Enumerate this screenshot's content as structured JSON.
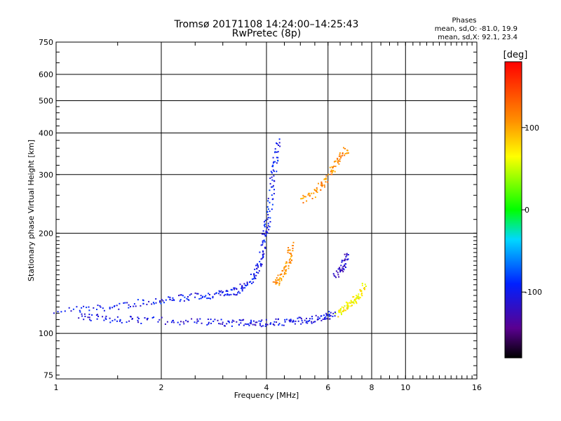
{
  "chart_data": {
    "type": "scatter",
    "title": "Tromsø 20171108 14:24:00–14:25:43",
    "subtitle": "RwPretec (8p)",
    "xlabel": "Frequency [MHz]",
    "ylabel": "Stationary phase Virtual Height [km]",
    "x_scale": "log",
    "y_scale": "log",
    "xlim": [
      1,
      16
    ],
    "ylim": [
      73,
      750
    ],
    "x_ticks": [
      1,
      2,
      4,
      6,
      8,
      10,
      16
    ],
    "x_tick_labels": [
      "1",
      "2",
      "4",
      "6",
      "8",
      "10",
      "16"
    ],
    "y_ticks": [
      75,
      100,
      200,
      300,
      400,
      500,
      600,
      750
    ],
    "y_tick_labels": [
      "75",
      "100",
      "200",
      "300",
      "400",
      "500",
      "600",
      "750"
    ],
    "grid": true,
    "phases_box": {
      "heading": "Phases",
      "line1": "mean, sd,O: -81.0, 19.9",
      "line2": "mean, sd,X:  92.1, 23.4"
    },
    "colorbar": {
      "label": "[deg]",
      "range": [
        -180,
        180
      ],
      "ticks": [
        100,
        0,
        -100
      ],
      "tick_labels": [
        "100",
        "0",
        "-100"
      ]
    },
    "traces": [
      {
        "x": [
          1.0,
          1.4,
          1.8,
          2.2,
          2.6,
          3.0,
          3.3,
          3.6,
          3.8,
          3.9,
          4.0
        ],
        "y": [
          118,
          120,
          125,
          128,
          130,
          132,
          135,
          145,
          160,
          185,
          220
        ],
        "phase": -100
      },
      {
        "x": [
          1.15,
          1.4,
          1.8,
          2.4,
          3.0,
          3.5,
          4.0,
          4.6,
          5.2,
          5.8,
          6.2
        ],
        "y": [
          113,
          111,
          110,
          109,
          108,
          108,
          108,
          109,
          110,
          112,
          115
        ],
        "phase": -105
      },
      {
        "x": [
          4.0,
          4.1,
          4.2,
          4.3
        ],
        "y": [
          200,
          260,
          320,
          380
        ],
        "phase": -95
      },
      {
        "x": [
          4.2,
          4.4,
          4.6,
          4.7
        ],
        "y": [
          140,
          150,
          165,
          185
        ],
        "phase": 105
      },
      {
        "x": [
          6.3,
          6.7,
          7.0,
          7.3,
          7.6
        ],
        "y": [
          115,
          120,
          125,
          130,
          140
        ],
        "phase": 70
      },
      {
        "x": [
          5.0,
          5.6,
          6.0,
          6.4,
          6.8
        ],
        "y": [
          250,
          270,
          300,
          330,
          360
        ],
        "phase": 110
      },
      {
        "x": [
          6.3,
          6.6,
          6.8
        ],
        "y": [
          150,
          160,
          175
        ],
        "phase": -120
      }
    ]
  }
}
